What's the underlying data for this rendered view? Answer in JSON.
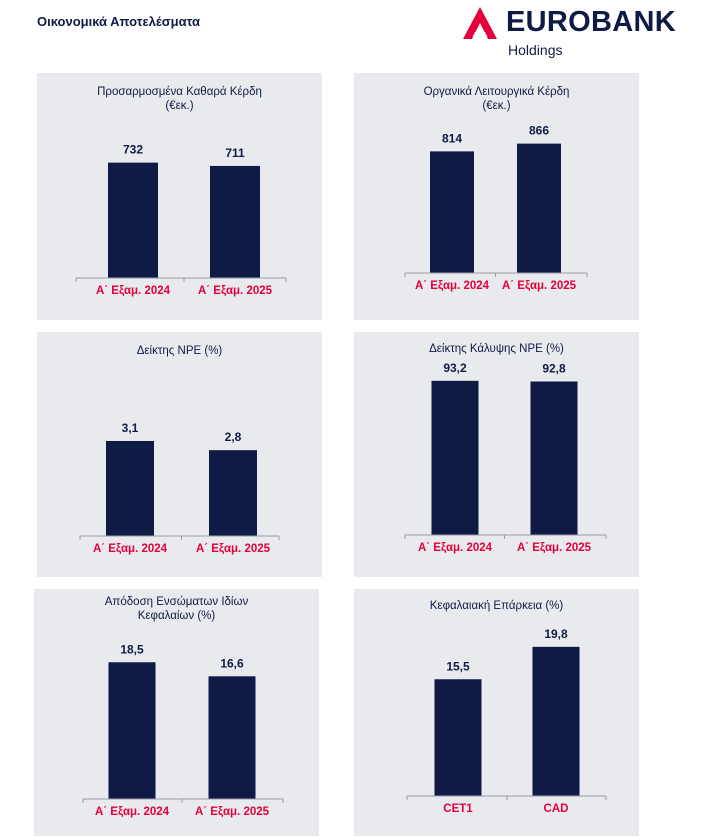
{
  "page": {
    "title": "Οικονομικά Αποτελέσματα"
  },
  "logo": {
    "name": "EUROBANK",
    "subtitle": "Holdings"
  },
  "colors": {
    "bar": "#0f1b45",
    "accent": "#e4003b",
    "panel": "#e9eaee",
    "text": "#0f1b45"
  },
  "chart_data": [
    {
      "type": "bar",
      "title": "Προσαρμοσμένα Καθαρά Κέρδη\n(€εκ.)",
      "categories": [
        "Α΄ Εξαμ. 2024",
        "Α΄ Εξαμ. 2025"
      ],
      "values": [
        732,
        711
      ],
      "labels": [
        "732",
        "711"
      ],
      "ylim": [
        0,
        920
      ]
    },
    {
      "type": "bar",
      "title": "Οργανικά Λειτουργικά Κέρδη\n(€εκ.)",
      "categories": [
        "Α΄ Εξαμ. 2024",
        "Α΄ Εξαμ. 2025"
      ],
      "values": [
        814,
        866
      ],
      "labels": [
        "814",
        "866"
      ],
      "ylim": [
        0,
        1245
      ]
    },
    {
      "type": "bar",
      "title": "Δείκτης NPE (%)",
      "categories": [
        "Α΄ Εξαμ. 2024",
        "Α΄ Εξαμ. 2025"
      ],
      "values": [
        3.1,
        2.8
      ],
      "labels": [
        "3,1",
        "2,8"
      ],
      "ylim": [
        0,
        4.6
      ]
    },
    {
      "type": "bar",
      "title": "Δείκτης Κάλυψης NPE (%)",
      "categories": [
        "Α΄ Εξαμ. 2024",
        "Α΄ Εξαμ. 2025"
      ],
      "values": [
        93.2,
        92.8
      ],
      "labels": [
        "93,2",
        "92,8"
      ],
      "ylim": [
        0,
        107
      ]
    },
    {
      "type": "bar",
      "title": "Απόδοση Ενσώματων Ιδίων\nΚεφαλαίων (%)",
      "categories": [
        "Α΄ Εξαμ. 2024",
        "Α΄ Εξαμ. 2025"
      ],
      "values": [
        18.5,
        16.6
      ],
      "labels": [
        "18,5",
        "16,6"
      ],
      "ylim": [
        0,
        23
      ]
    },
    {
      "type": "bar",
      "title": "Κεφαλαιακή Επάρκεια (%)",
      "categories": [
        "CET1",
        "CAD"
      ],
      "values": [
        15.5,
        19.8
      ],
      "labels": [
        "15,5",
        "19,8"
      ],
      "ylim": [
        0,
        23.5
      ]
    }
  ]
}
